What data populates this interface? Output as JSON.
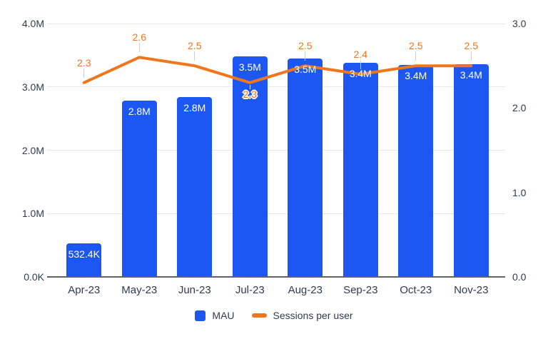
{
  "chart_data": {
    "type": "bar",
    "subtype": "combo-bar-line",
    "title": "",
    "categories": [
      "Apr-23",
      "May-23",
      "Jun-23",
      "Jul-23",
      "Aug-23",
      "Sep-23",
      "Oct-23",
      "Nov-23"
    ],
    "series": [
      {
        "name": "MAU",
        "type": "bar",
        "axis": "left",
        "color": "#1c57f2",
        "values": [
          532400,
          2780000,
          2840000,
          3480000,
          3450000,
          3380000,
          3350000,
          3360000
        ],
        "labels": [
          "532.4K",
          "2.8M",
          "2.8M",
          "3.5M",
          "3.5M",
          "3.4M",
          "3.4M",
          "3.4M"
        ]
      },
      {
        "name": "Sessions per user",
        "type": "line",
        "axis": "right",
        "color": "#f0761d",
        "values": [
          2.3,
          2.6,
          2.5,
          2.3,
          2.5,
          2.4,
          2.5,
          2.5
        ],
        "labels": [
          "2.3",
          "2.6",
          "2.5",
          "2.3",
          "2.5",
          "2.4",
          "2.5",
          "2.5"
        ],
        "label_positions": [
          "above",
          "above",
          "above",
          "below",
          "above",
          "above",
          "above",
          "above"
        ]
      }
    ],
    "left_axis": {
      "max": 4000000,
      "tick_values": [
        4000000,
        3000000,
        2000000,
        1000000,
        0
      ],
      "tick_labels": [
        "4.0M",
        "3.0M",
        "2.0M",
        "1.0M",
        "0.0K"
      ]
    },
    "right_axis": {
      "max": 3,
      "tick_values": [
        3,
        2,
        1,
        0
      ],
      "tick_labels": [
        "3.0",
        "2.0",
        "1.0",
        "0.0"
      ]
    },
    "grid": "horizontal",
    "legend_position": "bottom",
    "legend": [
      {
        "label": "MAU",
        "swatch": "square",
        "color": "#1c57f2"
      },
      {
        "label": "Sessions per user",
        "swatch": "dash",
        "color": "#f0761d"
      }
    ]
  },
  "colors": {
    "bar_blue": "#1c57f2",
    "line_orange": "#f0761d",
    "axis_text": "#2c3c52",
    "bar_label_text": "#ffffff",
    "gridline": "#e6e6e6",
    "baseline": "#5f6368",
    "callout": "#cfcfcf",
    "background": "#ffffff"
  }
}
